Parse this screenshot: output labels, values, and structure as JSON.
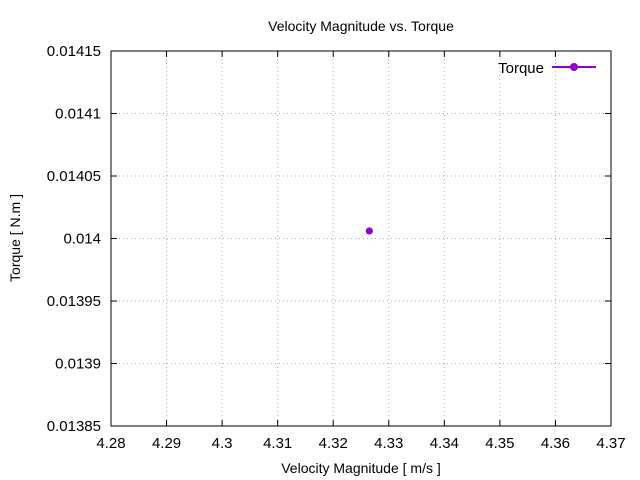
{
  "chart_data": {
    "type": "scatter",
    "title": "Velocity Magnitude vs. Torque",
    "xlabel": "Velocity Magnitude [ m/s ]",
    "ylabel": "Torque [ N.m ]",
    "xlim": [
      4.28,
      4.37
    ],
    "ylim": [
      0.01385,
      0.01415
    ],
    "x_ticks": [
      "4.28",
      "4.29",
      "4.3",
      "4.31",
      "4.32",
      "4.33",
      "4.34",
      "4.35",
      "4.36",
      "4.37"
    ],
    "y_ticks": [
      "0.01385",
      "0.0139",
      "0.01395",
      "0.014",
      "0.01405",
      "0.0141",
      "0.01415"
    ],
    "grid": true,
    "legend_position": "top-right",
    "series": [
      {
        "name": "Torque",
        "color": "#9400d3",
        "x": [
          4.3265
        ],
        "y": [
          0.014006
        ]
      }
    ]
  }
}
